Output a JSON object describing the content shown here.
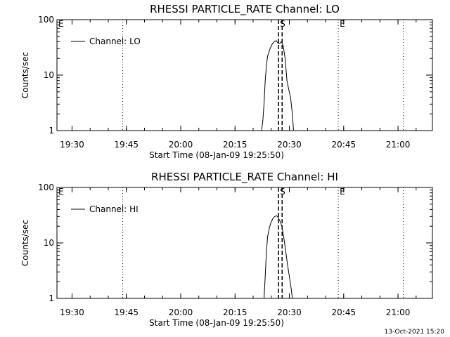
{
  "footer_timestamp": "13-Oct-2021 15:20",
  "chart_data": [
    {
      "type": "line",
      "title": "RHESSI PARTICLE_RATE Channel: LO",
      "xlabel": "Start Time (08-Jan-09 19:25:50)",
      "ylabel": "Counts/sec",
      "yscale": "log",
      "ylim": [
        1,
        100
      ],
      "xlim": [
        "19:25:50",
        "21:09:30"
      ],
      "xticks": [
        "19:30",
        "19:45",
        "20:00",
        "20:15",
        "20:30",
        "20:45",
        "21:00"
      ],
      "yticks": [
        "1",
        "10",
        "100"
      ],
      "legend": {
        "label": "Channel: LO",
        "placement": "top-left"
      },
      "grid": false,
      "markers": [
        {
          "time": "19:25:50",
          "label": "E",
          "style": "dotted"
        },
        {
          "time": "19:44:00",
          "label": "",
          "style": "dotted"
        },
        {
          "time": "20:27:00",
          "label": "S",
          "style": "dashed"
        },
        {
          "time": "20:28:00",
          "label": "",
          "style": "dashed"
        },
        {
          "time": "20:43:30",
          "label": "E",
          "style": "dotted"
        },
        {
          "time": "21:01:30",
          "label": "",
          "style": "dotted"
        }
      ],
      "series": [
        {
          "color": "#000000",
          "points": [
            [
              "20:22:20",
              1.0
            ],
            [
              "20:22:40",
              1.5
            ],
            [
              "20:23:00",
              3.0
            ],
            [
              "20:23:20",
              8.0
            ],
            [
              "20:23:40",
              15.0
            ],
            [
              "20:24:00",
              22.0
            ],
            [
              "20:24:40",
              30.0
            ],
            [
              "20:25:20",
              37.0
            ],
            [
              "20:25:50",
              40.0
            ],
            [
              "20:26:20",
              42.0
            ],
            [
              "20:26:50",
              38.0
            ],
            [
              "20:27:20",
              37.0
            ],
            [
              "20:27:50",
              40.0
            ],
            [
              "20:28:20",
              33.0
            ],
            [
              "20:28:50",
              20.0
            ],
            [
              "20:29:20",
              8.0
            ],
            [
              "20:29:50",
              5.5
            ],
            [
              "20:30:20",
              4.0
            ],
            [
              "20:30:50",
              2.0
            ],
            [
              "20:31:10",
              1.0
            ]
          ]
        }
      ]
    },
    {
      "type": "line",
      "title": "RHESSI PARTICLE_RATE Channel: HI",
      "xlabel": "Start Time (08-Jan-09 19:25:50)",
      "ylabel": "Counts/sec",
      "yscale": "log",
      "ylim": [
        1,
        100
      ],
      "xlim": [
        "19:25:50",
        "21:09:30"
      ],
      "xticks": [
        "19:30",
        "19:45",
        "20:00",
        "20:15",
        "20:30",
        "20:45",
        "21:00"
      ],
      "yticks": [
        "1",
        "10",
        "100"
      ],
      "legend": {
        "label": "Channel: HI",
        "placement": "top-left"
      },
      "grid": false,
      "markers": [
        {
          "time": "19:25:50",
          "label": "E",
          "style": "dotted"
        },
        {
          "time": "19:44:00",
          "label": "",
          "style": "dotted"
        },
        {
          "time": "20:27:00",
          "label": "S",
          "style": "dashed"
        },
        {
          "time": "20:28:00",
          "label": "",
          "style": "dashed"
        },
        {
          "time": "20:43:30",
          "label": "E",
          "style": "dotted"
        },
        {
          "time": "21:01:30",
          "label": "",
          "style": "dotted"
        }
      ],
      "series": [
        {
          "color": "#000000",
          "points": [
            [
              "20:23:00",
              1.0
            ],
            [
              "20:23:20",
              2.5
            ],
            [
              "20:23:40",
              7.0
            ],
            [
              "20:24:00",
              13.0
            ],
            [
              "20:24:30",
              19.0
            ],
            [
              "20:25:00",
              24.0
            ],
            [
              "20:25:30",
              28.0
            ],
            [
              "20:26:00",
              30.0
            ],
            [
              "20:26:30",
              31.0
            ],
            [
              "20:27:00",
              28.0
            ],
            [
              "20:27:30",
              24.0
            ],
            [
              "20:28:00",
              19.0
            ],
            [
              "20:28:30",
              12.0
            ],
            [
              "20:29:00",
              7.0
            ],
            [
              "20:29:30",
              4.0
            ],
            [
              "20:30:00",
              2.5
            ],
            [
              "20:30:30",
              1.5
            ],
            [
              "20:30:50",
              1.0
            ]
          ]
        }
      ]
    }
  ]
}
